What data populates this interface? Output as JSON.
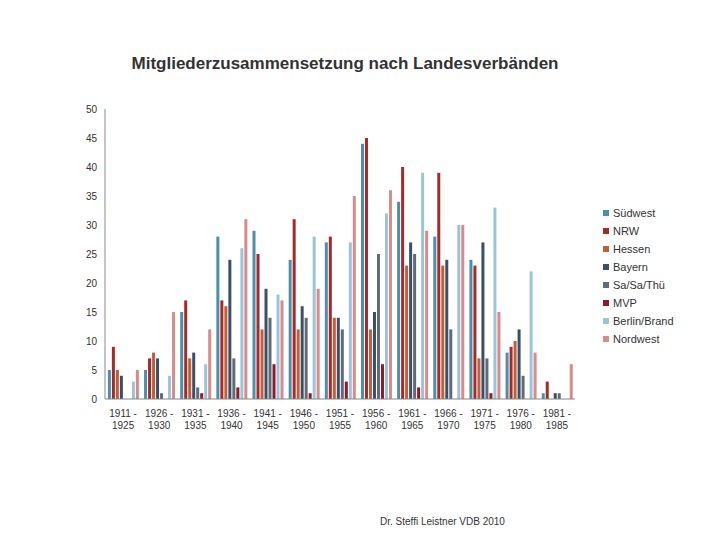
{
  "chart_data": {
    "type": "bar",
    "title": "Mitgliederzusammensetzung nach Landesverbänden",
    "categories": [
      "1911 - 1925",
      "1926 - 1930",
      "1931 - 1935",
      "1936 - 1940",
      "1941 - 1945",
      "1946 - 1950",
      "1951 - 1955",
      "1956 - 1960",
      "1961 - 1965",
      "1966 - 1970",
      "1971 - 1975",
      "1976 - 1980",
      "1981 - 1985"
    ],
    "series": [
      {
        "name": "Südwest",
        "color": "#4a90a8",
        "values": [
          5,
          5,
          15,
          28,
          29,
          24,
          27,
          44,
          34,
          28,
          24,
          8,
          1
        ]
      },
      {
        "name": "NRW",
        "color": "#a52a2a",
        "values": [
          9,
          7,
          17,
          17,
          25,
          31,
          28,
          45,
          40,
          39,
          23,
          9,
          3
        ]
      },
      {
        "name": "Hessen",
        "color": "#c0603a",
        "values": [
          5,
          8,
          7,
          16,
          12,
          12,
          14,
          12,
          23,
          23,
          7,
          10,
          0
        ]
      },
      {
        "name": "Bayern",
        "color": "#3b5068",
        "values": [
          4,
          7,
          8,
          24,
          19,
          16,
          14,
          15,
          27,
          24,
          27,
          12,
          1
        ]
      },
      {
        "name": "Sa/Sa/Thü",
        "color": "#5f6b7a",
        "values": [
          0,
          1,
          2,
          7,
          14,
          14,
          12,
          25,
          25,
          12,
          7,
          4,
          1
        ]
      },
      {
        "name": "MVP",
        "color": "#8b1a2b",
        "values": [
          0,
          0,
          1,
          2,
          6,
          1,
          3,
          6,
          2,
          0,
          1,
          0,
          0
        ]
      },
      {
        "name": "Berlin/Brand",
        "color": "#9cc4d8",
        "values": [
          3,
          4,
          6,
          26,
          18,
          28,
          27,
          32,
          39,
          30,
          33,
          22,
          0
        ]
      },
      {
        "name": "Nordwest",
        "color": "#d98a8a",
        "values": [
          5,
          15,
          12,
          31,
          17,
          19,
          35,
          36,
          29,
          30,
          15,
          8,
          6
        ]
      }
    ],
    "ylim": [
      0,
      50
    ],
    "yticks": [
      0,
      5,
      10,
      15,
      20,
      25,
      30,
      35,
      40,
      45,
      50
    ],
    "grid": false,
    "legend": "right",
    "annotations": [
      "Dr. Steffi Leistner VDB 2010"
    ]
  }
}
